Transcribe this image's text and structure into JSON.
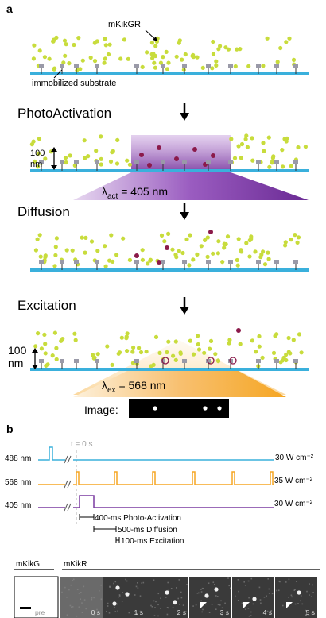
{
  "panel_a": {
    "label": "a",
    "protein_label": "mKikGR",
    "substrate_label": "immobilized substrate",
    "step1": "PhotoActivation",
    "step2": "Diffusion",
    "step3": "Excitation",
    "height_value": "100",
    "height_unit": "nm",
    "lambda_act_symbol": "λ",
    "lambda_act_sub": "act",
    "lambda_act_value": " = 405 nm",
    "lambda_ex_symbol": "λ",
    "lambda_ex_sub": "ex",
    "lambda_ex_value": " = 568 nm",
    "image_label": "Image:",
    "colors": {
      "green_dot": "#c8dc3c",
      "red_dot": "#8b1a4a",
      "substrate": "#3ab0dc",
      "purple": "#7a3aa0",
      "orange": "#f5a623",
      "anchor": "#9a9aa8"
    }
  },
  "panel_b": {
    "label": "b",
    "t0_label": "t = 0 s",
    "rows": [
      {
        "wavelength": "488 nm",
        "power": "30 W cm⁻²",
        "color": "#3ab0dc"
      },
      {
        "wavelength": "568 nm",
        "power": "35 W cm⁻²",
        "color": "#f5a623"
      },
      {
        "wavelength": "405 nm",
        "power": "30 W cm⁻²",
        "color": "#7a3aa0"
      }
    ],
    "timing": [
      "400-ms Photo-Activation",
      "500-ms Diffusion",
      "100-ms Excitation"
    ],
    "green_label": "mKikG",
    "red_label": "mKikR",
    "frame_pre": "pre",
    "frames": [
      "0 s",
      "1 s",
      "2 s",
      "3 s",
      "4 s",
      "5 s"
    ]
  }
}
